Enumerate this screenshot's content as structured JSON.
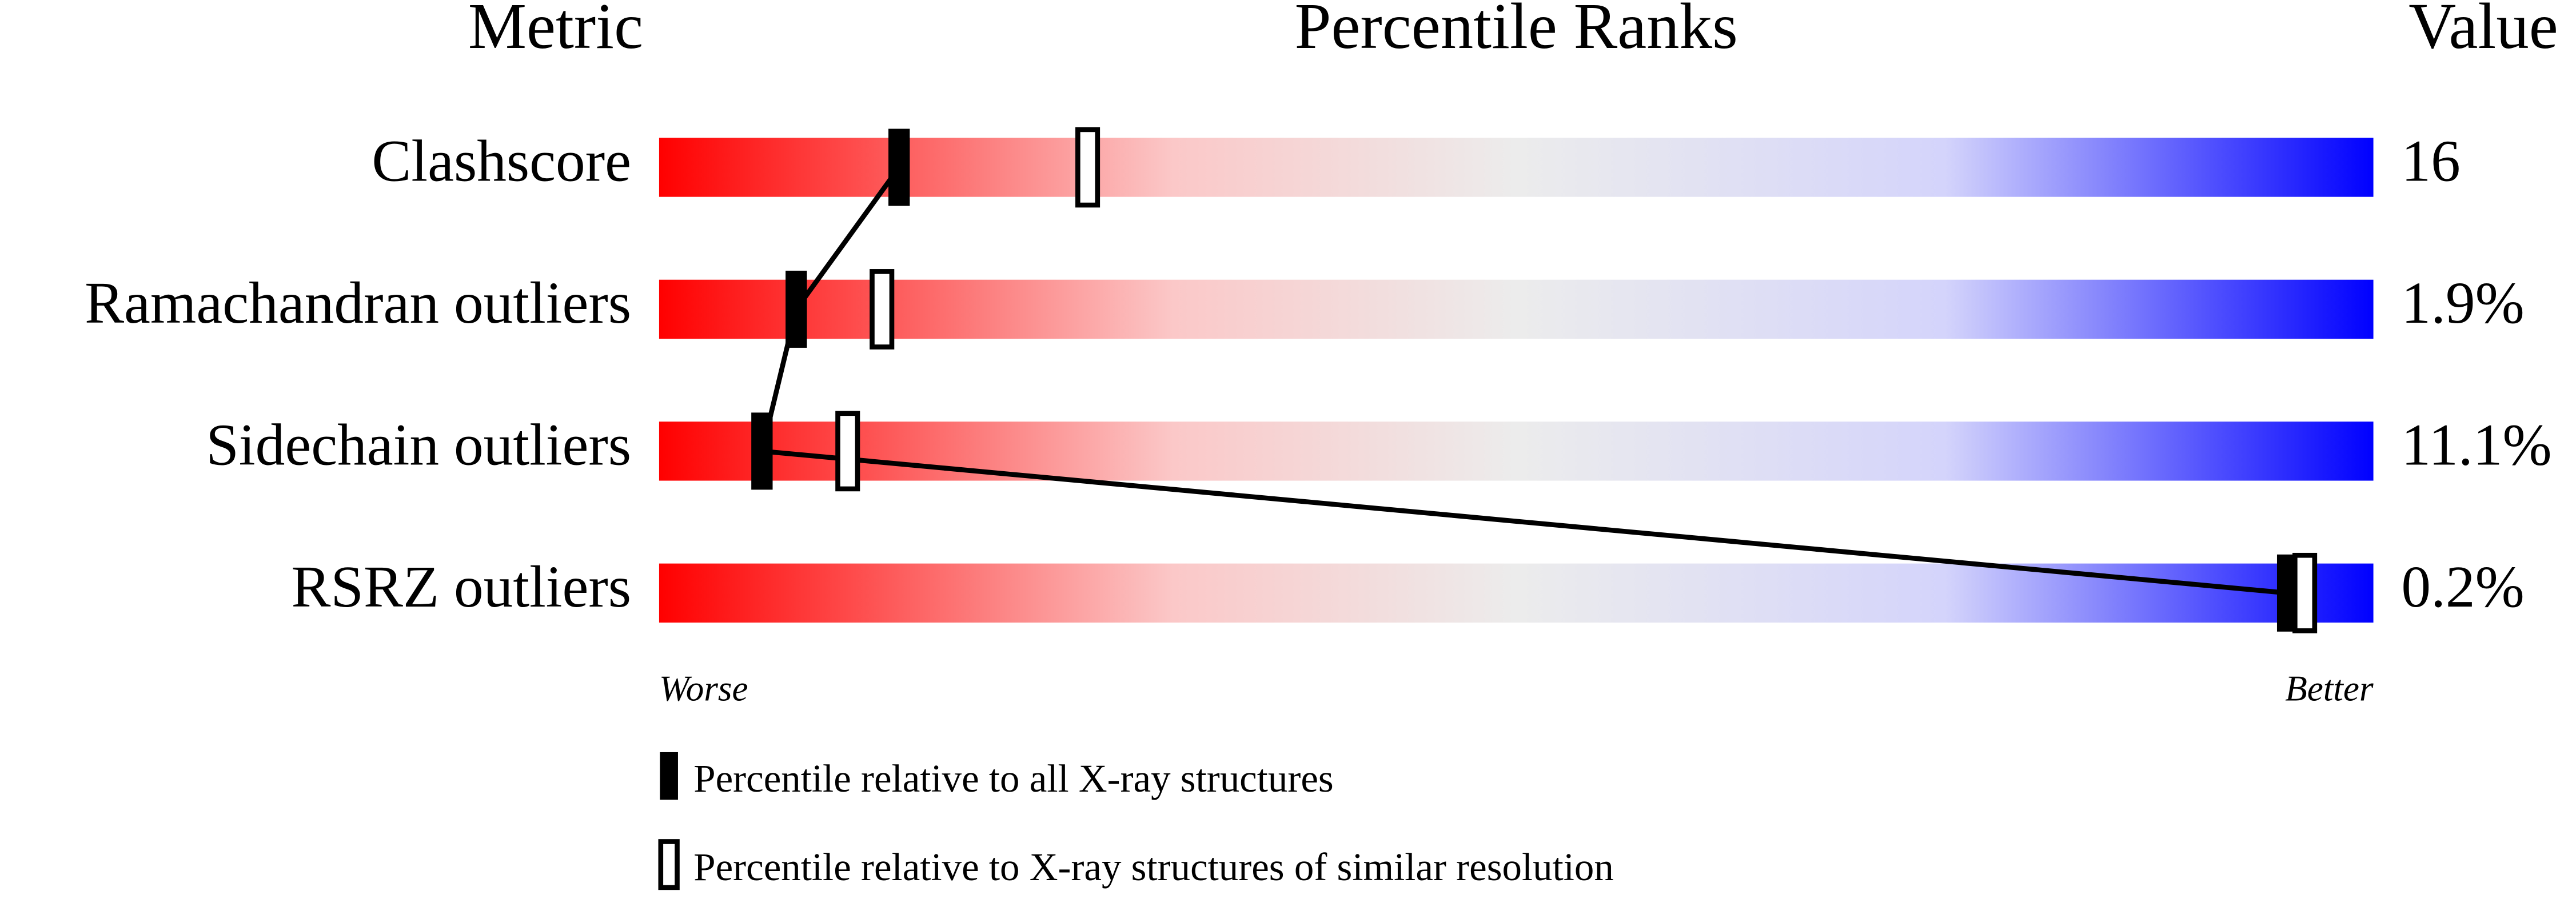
{
  "chart_data": {
    "type": "percentile-slider",
    "headers": {
      "metric": "Metric",
      "ranks": "Percentile Ranks",
      "value": "Value"
    },
    "categories": [
      "Clashscore",
      "Ramachandran outliers",
      "Sidechain outliers",
      "RSRZ outliers"
    ],
    "metric_values": [
      "16",
      "1.9%",
      "11.1%",
      "0.2%"
    ],
    "xlim": [
      0,
      100
    ],
    "x_end_labels": {
      "low": "Worse",
      "high": "Better"
    },
    "series": [
      {
        "name": "Percentile relative to all X-ray structures",
        "style": "filled",
        "color": "#000000",
        "values": [
          14,
          8,
          6,
          95
        ]
      },
      {
        "name": "Percentile relative to X-ray structures of similar resolution",
        "style": "hollow",
        "color": "#000000",
        "values": [
          25,
          13,
          11,
          96
        ]
      }
    ]
  }
}
